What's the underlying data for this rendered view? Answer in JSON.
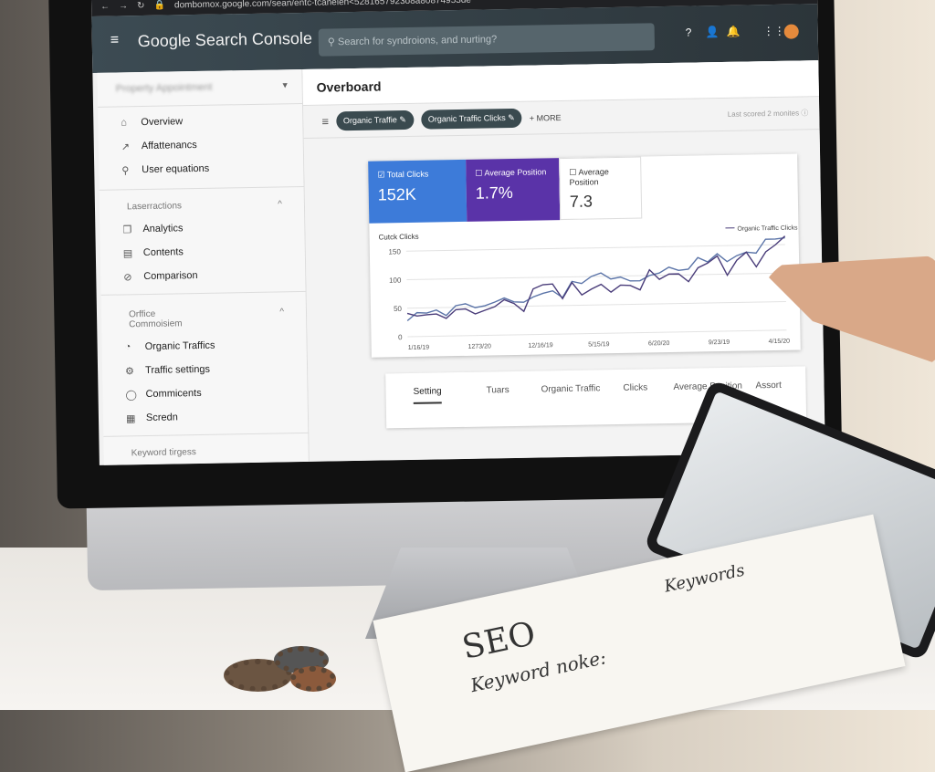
{
  "browser": {
    "url": "dombomox.google.com/sean/entc-tcanelen<5281657923o8a80874953de"
  },
  "header": {
    "brand": "Google Search Console",
    "search_placeholder": "Search for syndroions, and nurting?"
  },
  "sidebar": {
    "property": "Property Appointment",
    "top_items": [
      {
        "label": "Overview",
        "icon": "home-icon"
      },
      {
        "label": "Affattenancs",
        "icon": "trending-icon"
      },
      {
        "label": "User equations",
        "icon": "search-icon"
      }
    ],
    "section1": {
      "title": "Laserractions",
      "items": [
        {
          "label": "Analytics",
          "icon": "copy-icon"
        },
        {
          "label": "Contents",
          "icon": "gallery-icon"
        },
        {
          "label": "Comparison",
          "icon": "eye-off-icon"
        }
      ]
    },
    "section2": {
      "title_line1": "Orffice",
      "title_line2": "Commoisiem",
      "items": [
        {
          "label": "Organic Traffics",
          "icon": "gauge-icon"
        },
        {
          "label": "Traffic settings",
          "icon": "settings-icon"
        },
        {
          "label": "Commicents",
          "icon": "shield-icon"
        },
        {
          "label": "Scredn",
          "icon": "calendar-icon"
        }
      ]
    },
    "section3": {
      "title": "Keyword tirgess"
    }
  },
  "main": {
    "title": "Overboard",
    "filters": [
      "Organic Traffie",
      "Organic Traffic Clicks"
    ],
    "more": "MORE",
    "last_scored": "Last scored 2 monites",
    "metrics": [
      {
        "label": "Total Clicks",
        "value": "152K",
        "checked": true,
        "color": "#3d7bd9"
      },
      {
        "label": "Average Position",
        "value": "1.7%",
        "checked": false,
        "color": "#5a33a8"
      },
      {
        "label": "Average Position",
        "value": "7.3",
        "checked": false,
        "color": "#ffffff"
      }
    ],
    "tabs": [
      "Setting",
      "Tuars",
      "Organic Traffic",
      "Clicks",
      "Average Position",
      "Assort"
    ]
  },
  "chart_data": {
    "type": "line",
    "ylabel": "Cutck Clicks",
    "ylim": [
      0,
      160
    ],
    "yticks": [
      0,
      50,
      100,
      150
    ],
    "xticklabels": [
      "1/16/19",
      "1273/20",
      "12/16/19",
      "5/15/19",
      "6/20/20",
      "9/23/19",
      "4/15/20"
    ],
    "legend": "Organic Traffic Clicks",
    "legend_position": "top-right",
    "grid": true,
    "series": [
      {
        "color": "#5b74a8",
        "values": [
          28,
          42,
          41,
          46,
          36,
          53,
          56,
          49,
          52,
          58,
          65,
          58,
          57,
          66,
          72,
          76,
          64,
          92,
          88,
          100,
          106,
          95,
          98,
          91,
          91,
          100,
          104,
          114,
          108,
          110,
          130,
          122,
          136,
          122,
          132,
          138,
          136,
          160,
          160,
          162
        ]
      },
      {
        "name": "Organic Traffic Clicks",
        "color": "#4a3d7a",
        "values": [
          41,
          36,
          38,
          39,
          31,
          46,
          47,
          38,
          44,
          50,
          62,
          55,
          41,
          80,
          87,
          88,
          62,
          90,
          68,
          78,
          86,
          72,
          84,
          83,
          75,
          110,
          93,
          102,
          102,
          88,
          112,
          120,
          132,
          98,
          124,
          138,
          112,
          138,
          150,
          165
        ]
      }
    ]
  },
  "notebook": {
    "title": "SEO",
    "line1": "Keyword noke:",
    "line2": "Keywords"
  }
}
